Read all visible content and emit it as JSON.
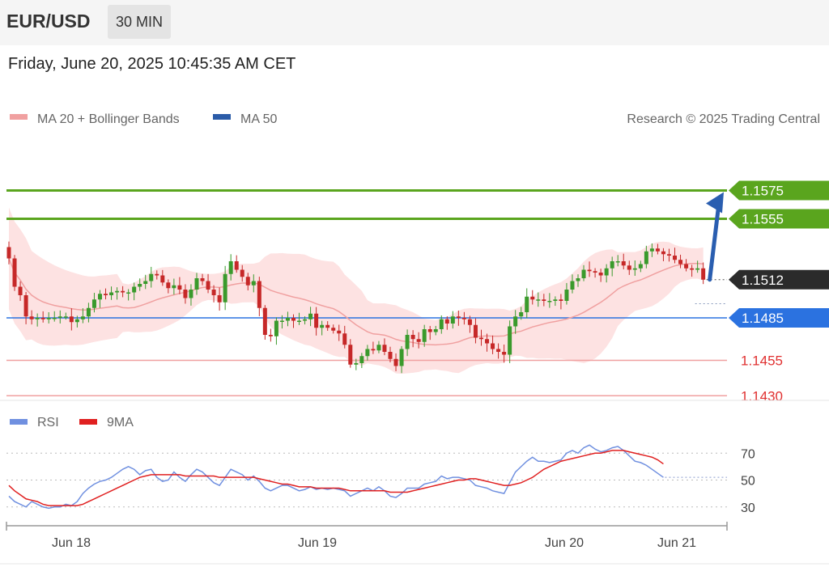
{
  "header": {
    "pair": "EUR/USD",
    "timeframe": "30 MIN"
  },
  "datetime": "Friday, June 20, 2025 10:45:35 AM CET",
  "colors": {
    "resistance": "#5aa51e",
    "support": "#2b72e0",
    "weak_level": "#f0a0a0",
    "weak_level_text": "#e03030",
    "current": "#2b2b2b",
    "ma20": "#f0a0a0",
    "band_fill": "#fde2e2",
    "ma50": "#3060b0",
    "up_candle": "#3a9a2c",
    "down_candle": "#c62828",
    "arrow": "#2a5eb0",
    "rsi": "#7090e0",
    "rsi_ma": "#e02020"
  },
  "chart_data": [
    {
      "type": "candlestick",
      "title": "",
      "legend": [
        {
          "label": "MA 20 + Bollinger Bands",
          "color": "#f0a0a0"
        },
        {
          "label": "MA 50",
          "color": "#2b5ca8"
        }
      ],
      "legend_position": "top-left",
      "credit": "Research © 2025 Trading Central",
      "ylim": [
        1.1425,
        1.1605
      ],
      "x_ticks": [
        "Jun 18",
        "Jun 19",
        "Jun 20",
        "Jun 21"
      ],
      "levels": [
        {
          "label": "1.1575",
          "value": 1.1575,
          "kind": "resistance"
        },
        {
          "label": "1.1555",
          "value": 1.1555,
          "kind": "resistance"
        },
        {
          "label": "1.1512",
          "value": 1.1512,
          "kind": "current"
        },
        {
          "label": "1.1485",
          "value": 1.1485,
          "kind": "support"
        },
        {
          "label": "1.1455",
          "value": 1.1455,
          "kind": "weak"
        },
        {
          "label": "1.1430",
          "value": 1.143,
          "kind": "weak"
        }
      ],
      "pivot_value": 1.1495,
      "close": [
        1.1527,
        1.1507,
        1.1501,
        1.1486,
        1.1484,
        1.1485,
        1.1484,
        1.1485,
        1.1485,
        1.1486,
        1.1486,
        1.1482,
        1.1484,
        1.1486,
        1.1492,
        1.1498,
        1.1502,
        1.1501,
        1.1503,
        1.1504,
        1.1503,
        1.1503,
        1.1507,
        1.1509,
        1.1511,
        1.1516,
        1.1515,
        1.151,
        1.1506,
        1.1508,
        1.1505,
        1.1499,
        1.1505,
        1.1513,
        1.1511,
        1.1505,
        1.1501,
        1.1496,
        1.1516,
        1.1525,
        1.1519,
        1.1514,
        1.1508,
        1.1511,
        1.1492,
        1.1473,
        1.1472,
        1.1483,
        1.1483,
        1.1485,
        1.1483,
        1.1483,
        1.1484,
        1.1488,
        1.1478,
        1.148,
        1.1478,
        1.1476,
        1.1474,
        1.1466,
        1.1452,
        1.1453,
        1.1458,
        1.1463,
        1.1462,
        1.1466,
        1.1461,
        1.1456,
        1.1451,
        1.1463,
        1.1473,
        1.147,
        1.1468,
        1.1477,
        1.1475,
        1.1477,
        1.1484,
        1.1481,
        1.1486,
        1.1485,
        1.1484,
        1.148,
        1.1471,
        1.147,
        1.1467,
        1.1463,
        1.1461,
        1.1459,
        1.1479,
        1.1486,
        1.1489,
        1.15,
        1.1498,
        1.1498,
        1.1497,
        1.1497,
        1.1498,
        1.1497,
        1.1505,
        1.1511,
        1.1513,
        1.1519,
        1.1518,
        1.1517,
        1.1515,
        1.152,
        1.1525,
        1.1525,
        1.1522,
        1.1519,
        1.152,
        1.1523,
        1.1532,
        1.1534,
        1.1532,
        1.153,
        1.1529,
        1.1526,
        1.1523,
        1.152,
        1.1519,
        1.152,
        1.1512
      ]
    },
    {
      "type": "line",
      "title": "",
      "legend": [
        {
          "label": "RSI",
          "color": "#7090e0"
        },
        {
          "label": "9MA",
          "color": "#e02020"
        }
      ],
      "ylim": [
        10,
        90
      ],
      "y_ticks": [
        "70",
        "50",
        "30"
      ],
      "x_ticks": [
        "Jun 18",
        "Jun 19",
        "Jun 20",
        "Jun 21"
      ],
      "series": [
        {
          "name": "RSI",
          "values": [
            38,
            34,
            32,
            30,
            34,
            32,
            30,
            29,
            30,
            30,
            32,
            31,
            34,
            40,
            44,
            47,
            49,
            50,
            52,
            55,
            58,
            60,
            58,
            54,
            57,
            58,
            52,
            49,
            50,
            56,
            52,
            49,
            54,
            58,
            56,
            52,
            48,
            46,
            52,
            58,
            56,
            54,
            50,
            53,
            49,
            44,
            42,
            44,
            46,
            46,
            44,
            42,
            43,
            45,
            43,
            44,
            43,
            44,
            43,
            42,
            38,
            40,
            42,
            44,
            42,
            45,
            42,
            38,
            37,
            40,
            44,
            44,
            44,
            47,
            48,
            49,
            53,
            51,
            52,
            52,
            51,
            50,
            46,
            45,
            44,
            42,
            41,
            40,
            48,
            56,
            60,
            64,
            67,
            64,
            64,
            63,
            64,
            65,
            70,
            72,
            70,
            74,
            76,
            73,
            71,
            72,
            74,
            75,
            72,
            68,
            64,
            63,
            61,
            58,
            55,
            52
          ]
        },
        {
          "name": "9MA",
          "values": [
            46,
            42,
            39,
            36,
            35,
            34,
            32,
            31,
            31,
            31,
            31,
            31,
            31,
            32,
            34,
            36,
            38,
            40,
            42,
            44,
            46,
            48,
            50,
            52,
            53,
            54,
            54,
            54,
            54,
            54,
            54,
            53,
            53,
            53,
            53,
            53,
            53,
            52,
            52,
            52,
            52,
            52,
            52,
            52,
            51,
            50,
            49,
            48,
            47,
            47,
            46,
            45,
            45,
            45,
            44,
            44,
            44,
            44,
            44,
            43,
            42,
            42,
            42,
            42,
            42,
            42,
            42,
            41,
            41,
            41,
            41,
            42,
            43,
            44,
            45,
            46,
            47,
            48,
            49,
            50,
            50,
            51,
            51,
            50,
            49,
            48,
            47,
            46,
            46,
            47,
            48,
            50,
            52,
            55,
            58,
            60,
            62,
            64,
            65,
            66,
            67,
            68,
            69,
            70,
            70,
            71,
            72,
            72,
            72,
            71,
            70,
            69,
            68,
            67,
            65,
            62
          ]
        }
      ],
      "reference_level": 50
    }
  ]
}
